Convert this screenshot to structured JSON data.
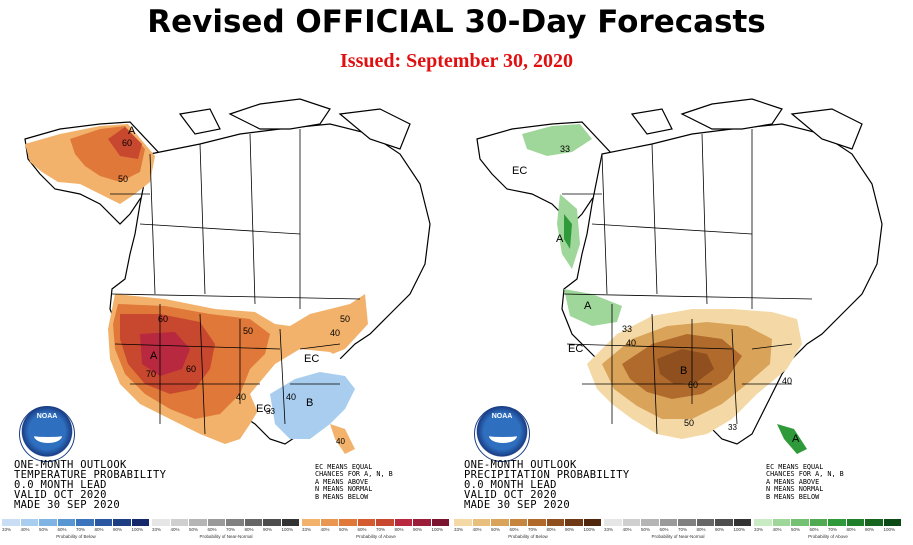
{
  "title": "Revised OFFICIAL 30-Day Forecasts",
  "subtitle": "Issued: September 30, 2020",
  "colors": {
    "subtitle": "#e01010",
    "above_light": "#f2b26b",
    "above_mid": "#e0783a",
    "above_strong": "#c8472f",
    "above_max": "#b8283f",
    "below_light": "#a8cdee",
    "precip_below_light": "#f4d9a6",
    "precip_below_mid": "#d9a45a",
    "precip_below_strong": "#b06a2c",
    "precip_above_light": "#9fd69a",
    "precip_above_strong": "#2f9a3a",
    "ec_bg": "#ffffff"
  },
  "temperature_map": {
    "labels": {
      "alaska_a": "A",
      "alaska_60": "60",
      "alaska_50": "50",
      "west_a": "A",
      "west_70": "70",
      "west_60": "60",
      "central_60": "60",
      "north_50": "50",
      "east_50": "50",
      "east_40": "40",
      "mid_40": "40",
      "ec_east": "EC",
      "ec_south": "EC",
      "southeast_b": "B",
      "southeast_40": "40",
      "southeast_33": "33",
      "florida_40": "40"
    },
    "outlook": {
      "line1": "ONE-MONTH OUTLOOK",
      "line2": "TEMPERATURE PROBABILITY",
      "line3": "0.0 MONTH LEAD",
      "line4": "VALID OCT 2020",
      "line5": "MADE 30 SEP 2020"
    },
    "legend": {
      "line1": "EC MEANS EQUAL",
      "line2": "CHANCES FOR A, N, B",
      "line3": "A MEANS ABOVE",
      "line4": "N MEANS NORMAL",
      "line5": "B MEANS BELOW"
    },
    "logo_text": "NOAA"
  },
  "precipitation_map": {
    "labels": {
      "alaska_33": "33",
      "alaska_ec": "EC",
      "nw_a": "A",
      "pnw_a": "A",
      "west_ec": "EC",
      "central_33": "33",
      "central_40": "40",
      "central_b": "B",
      "central_60": "60",
      "east_40": "40",
      "south_50": "50",
      "south_33": "33",
      "florida_a": "A"
    },
    "outlook": {
      "line1": "ONE-MONTH OUTLOOK",
      "line2": "PRECIPITATION PROBABILITY",
      "line3": "0.0 MONTH LEAD",
      "line4": "VALID OCT 2020",
      "line5": "MADE 30 SEP 2020"
    },
    "legend": {
      "line1": "EC MEANS EQUAL",
      "line2": "CHANCES FOR A, N, B",
      "line3": "A MEANS ABOVE",
      "line4": "N MEANS NORMAL",
      "line5": "B MEANS BELOW"
    },
    "logo_text": "NOAA"
  },
  "scales": [
    {
      "caption": "Probability of Below",
      "ticks": [
        "33%",
        "40%",
        "50%",
        "60%",
        "70%",
        "80%",
        "90%",
        "100%"
      ],
      "colors": [
        "#c9def4",
        "#a8cdee",
        "#7fb3e3",
        "#5896d2",
        "#3b74bb",
        "#2a57a0",
        "#1d3e82",
        "#14286a"
      ]
    },
    {
      "caption": "Probability of Near-Normal",
      "ticks": [
        "33%",
        "40%",
        "50%",
        "60%",
        "70%",
        "80%",
        "90%",
        "100%"
      ],
      "colors": [
        "#e6e6e6",
        "#cfcfcf",
        "#b5b5b5",
        "#9a9a9a",
        "#808080",
        "#666666",
        "#4d4d4d",
        "#333333"
      ]
    },
    {
      "caption": "Probability of Above",
      "ticks": [
        "33%",
        "40%",
        "50%",
        "60%",
        "70%",
        "80%",
        "90%",
        "100%"
      ],
      "colors": [
        "#f2b26b",
        "#e99650",
        "#e0783a",
        "#d45a30",
        "#c8472f",
        "#b8283f",
        "#9a1e3a",
        "#7a1430"
      ]
    },
    {
      "caption": "Probability of Below",
      "ticks": [
        "33%",
        "40%",
        "50%",
        "60%",
        "70%",
        "80%",
        "90%",
        "100%"
      ],
      "colors": [
        "#f4d9a6",
        "#e8bf7c",
        "#d9a45a",
        "#c5853f",
        "#b06a2c",
        "#8f4f1f",
        "#6f3915",
        "#50260d"
      ]
    },
    {
      "caption": "Probability of Near-Normal",
      "ticks": [
        "33%",
        "40%",
        "50%",
        "60%",
        "70%",
        "80%",
        "90%",
        "100%"
      ],
      "colors": [
        "#e6e6e6",
        "#cfcfcf",
        "#b5b5b5",
        "#9a9a9a",
        "#808080",
        "#666666",
        "#4d4d4d",
        "#333333"
      ]
    },
    {
      "caption": "Probability of Above",
      "ticks": [
        "33%",
        "40%",
        "50%",
        "60%",
        "70%",
        "80%",
        "90%",
        "100%"
      ],
      "colors": [
        "#c9ebc3",
        "#9fd69a",
        "#74c173",
        "#4faa52",
        "#2f9a3a",
        "#1f7f2a",
        "#15651f",
        "#0b4a14"
      ]
    }
  ]
}
